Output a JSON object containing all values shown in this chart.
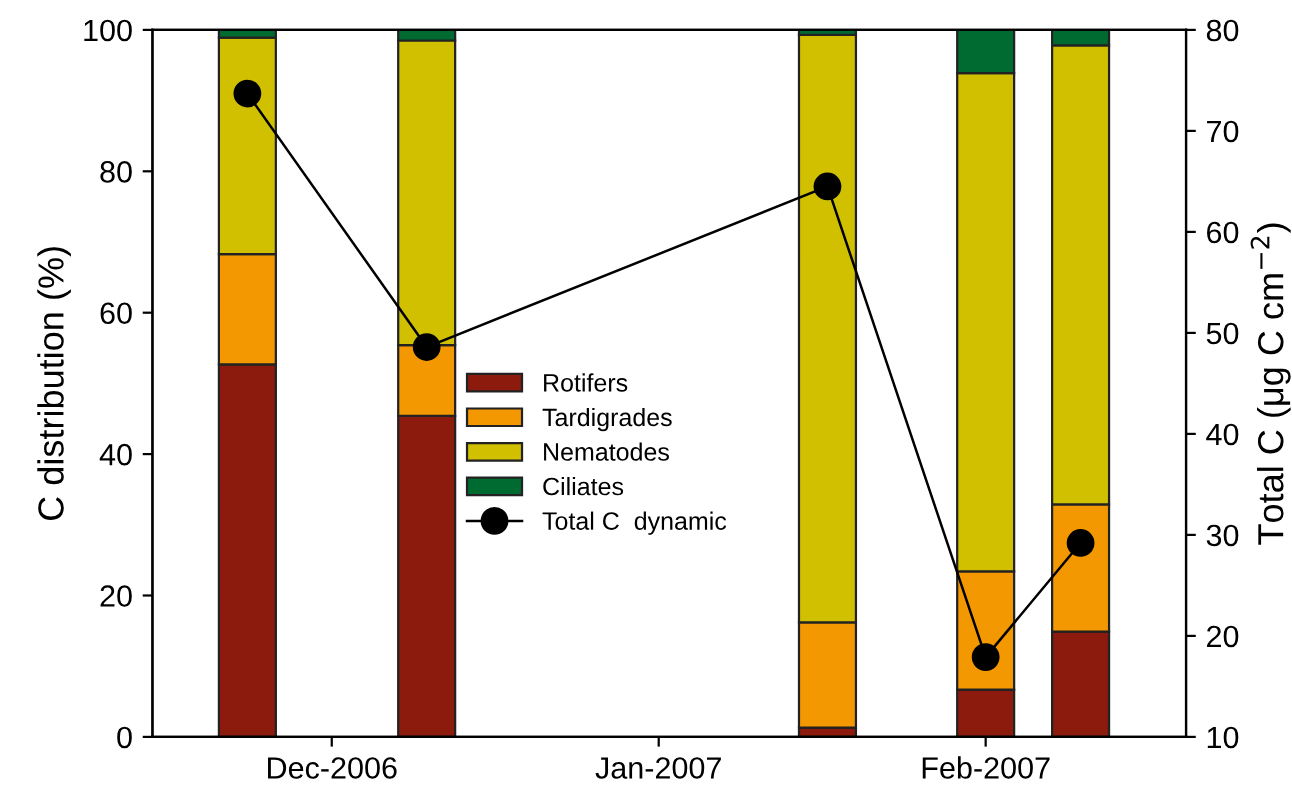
{
  "chart_data": {
    "type": "bar",
    "stacked": true,
    "ylabel": "C distribution (%)",
    "y2label": "Total C (μg C cm$^{−2}$)",
    "x": [
      "2006-11-23",
      "2006-12-10",
      "2007-01-17",
      "2007-02-01",
      "2007-02-10"
    ],
    "series": [
      {
        "name": "Rotifers",
        "color": "#8c1a0d",
        "values": [
          52.7,
          45.4,
          1.3,
          6.7,
          14.9
        ]
      },
      {
        "name": "Tardigrades",
        "color": "#f39800",
        "values": [
          15.6,
          10.0,
          14.9,
          16.7,
          18.0
        ]
      },
      {
        "name": "Nematodes",
        "color": "#d0c000",
        "values": [
          30.6,
          43.1,
          83.1,
          70.5,
          64.9
        ]
      },
      {
        "name": "Ciliates",
        "color": "#006b30",
        "values": [
          1.1,
          1.5,
          0.7,
          6.1,
          2.2
        ]
      },
      {
        "name": "Total C  dynamic",
        "type": "line",
        "axis": "y2",
        "color": "#000000",
        "marker": "circle",
        "values": [
          73.7,
          48.6,
          64.5,
          17.9,
          29.2
        ]
      }
    ],
    "xlim": [
      "2006-11-14",
      "2007-02-20"
    ],
    "xticks": [
      {
        "value": "2006-12-01",
        "label": "Dec-2006"
      },
      {
        "value": "2007-01-01",
        "label": "Jan-2007"
      },
      {
        "value": "2007-02-01",
        "label": "Feb-2007"
      }
    ],
    "ylim": [
      0,
      100
    ],
    "yticks": [
      0,
      20,
      40,
      60,
      80,
      100
    ],
    "y2lim": [
      10,
      80
    ],
    "y2ticks": [
      10,
      20,
      30,
      40,
      50,
      60,
      70,
      80
    ],
    "legend": "center",
    "grid": false
  }
}
